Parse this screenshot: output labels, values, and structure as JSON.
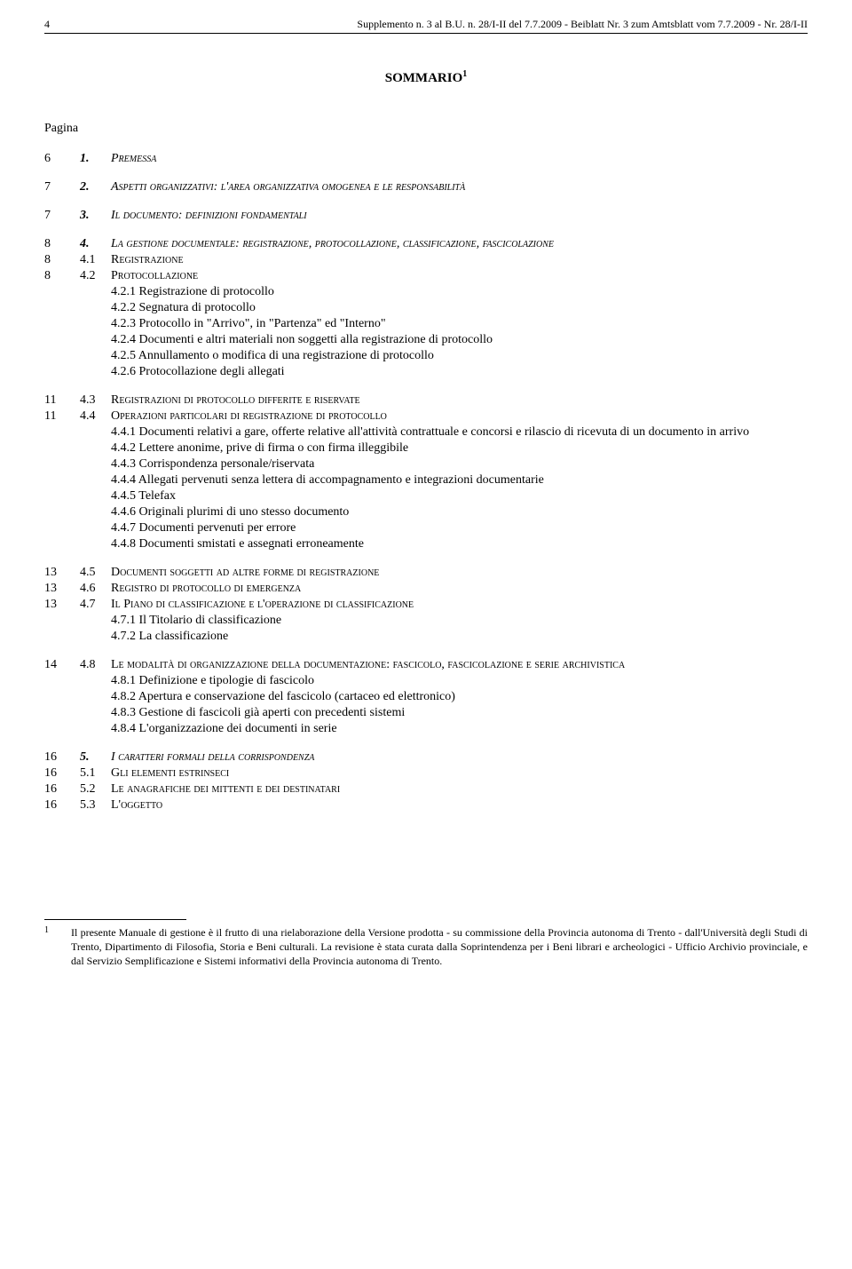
{
  "header": {
    "page_number": "4",
    "text": "Supplemento n. 3 al B.U. n. 28/I-II del 7.7.2009 - Beiblatt Nr. 3 zum Amtsblatt vom 7.7.2009 - Nr. 28/I-II"
  },
  "title": "SOMMARIO",
  "title_sup": "1",
  "pagina_label": "Pagina",
  "toc": [
    {
      "page": "6",
      "num": "1.",
      "text": "Premessa",
      "style": "italic-smallcaps",
      "gap_after": true
    },
    {
      "page": "7",
      "num": "2.",
      "text": "Aspetti organizzativi: l'area organizzativa omogenea e le responsabilità",
      "style": "italic-smallcaps",
      "gap_after": true
    },
    {
      "page": "7",
      "num": "3.",
      "text": "Il documento: definizioni fondamentali",
      "style": "italic-smallcaps",
      "gap_after": true
    },
    {
      "page": "8",
      "num": "4.",
      "text": "La gestione documentale: registrazione, protocollazione, classificazione, fascicolazione",
      "style": "italic-smallcaps"
    },
    {
      "page": "8",
      "num": "4.1",
      "text": "Registrazione",
      "style": "smallcaps"
    },
    {
      "page": "8",
      "num": "4.2",
      "text": "Protocollazione",
      "style": "smallcaps"
    },
    {
      "sub": true,
      "text": "4.2.1  Registrazione di protocollo"
    },
    {
      "sub": true,
      "text": "4.2.2  Segnatura di protocollo"
    },
    {
      "sub": true,
      "text": "4.2.3  Protocollo in \"Arrivo\", in \"Partenza\" ed \"Interno\""
    },
    {
      "sub": true,
      "text": "4.2.4  Documenti e altri materiali non soggetti alla registrazione di protocollo"
    },
    {
      "sub": true,
      "text": "4.2.5  Annullamento o modifica di una registrazione di protocollo"
    },
    {
      "sub": true,
      "text": "4.2.6  Protocollazione degli allegati",
      "gap_after": true
    },
    {
      "page": "11",
      "num": "4.3",
      "text": "Registrazioni di protocollo differite e riservate",
      "style": "smallcaps"
    },
    {
      "page": "11",
      "num": "4.4",
      "text": "Operazioni particolari di registrazione di protocollo",
      "style": "smallcaps"
    },
    {
      "sub": true,
      "text": "4.4.1  Documenti relativi a gare, offerte relative all'attività contrattuale e concorsi e rilascio di ricevuta di un documento in arrivo"
    },
    {
      "sub": true,
      "text": "4.4.2  Lettere anonime, prive di firma o con firma illeggibile"
    },
    {
      "sub": true,
      "text": "4.4.3  Corrispondenza personale/riservata"
    },
    {
      "sub": true,
      "text": "4.4.4  Allegati pervenuti senza lettera di accompagnamento e integrazioni documentarie"
    },
    {
      "sub": true,
      "text": "4.4.5  Telefax"
    },
    {
      "sub": true,
      "text": "4.4.6  Originali plurimi di uno stesso documento"
    },
    {
      "sub": true,
      "text": "4.4.7 Documenti pervenuti per errore"
    },
    {
      "sub": true,
      "text": "4.4.8 Documenti smistati e assegnati erroneamente",
      "gap_after": true
    },
    {
      "page": "13",
      "num": "4.5",
      "text": "Documenti soggetti ad altre forme di registrazione",
      "style": "smallcaps"
    },
    {
      "page": "13",
      "num": "4.6",
      "text": "Registro di protocollo di emergenza",
      "style": "smallcaps"
    },
    {
      "page": "13",
      "num": "4.7",
      "text": "Il Piano di classificazione e l'operazione di classificazione",
      "style": "smallcaps"
    },
    {
      "sub": true,
      "text": "4.7.1  Il Titolario di classificazione"
    },
    {
      "sub": true,
      "text": "4.7.2  La classificazione",
      "gap_after": true
    },
    {
      "page": "14",
      "num": "4.8",
      "text": "Le modalità di organizzazione della documentazione: fascicolo, fascicolazione e serie archivistica",
      "style": "smallcaps"
    },
    {
      "sub": true,
      "text": "4.8.1  Definizione e tipologie di fascicolo"
    },
    {
      "sub": true,
      "text": "4.8.2  Apertura e conservazione del fascicolo (cartaceo ed elettronico)"
    },
    {
      "sub": true,
      "text": "4.8.3  Gestione di fascicoli già aperti con precedenti sistemi"
    },
    {
      "sub": true,
      "text": "4.8.4  L'organizzazione dei documenti in serie",
      "gap_after": true
    },
    {
      "page": "16",
      "num": "5.",
      "text": "I caratteri formali della corrispondenza",
      "style": "italic-smallcaps"
    },
    {
      "page": "16",
      "num": "5.1",
      "text": "Gli elementi estrinseci",
      "style": "smallcaps"
    },
    {
      "page": "16",
      "num": "5.2",
      "text": "Le anagrafiche dei mittenti e dei destinatari",
      "style": "smallcaps"
    },
    {
      "page": "16",
      "num": "5.3",
      "text": "L'oggetto",
      "style": "smallcaps"
    }
  ],
  "footnote": {
    "num": "1",
    "text": "Il presente Manuale di gestione è il frutto di una rielaborazione della Versione prodotta - su commissione della Provincia autonoma di Trento - dall'Università degli Studi di Trento, Dipartimento di Filosofia, Storia e Beni culturali. La revisione è stata curata dalla Soprintendenza per i Beni librari e archeologici - Ufficio Archivio provinciale, e dal Servizio Semplificazione e Sistemi informativi della Provincia autonoma di Trento."
  }
}
